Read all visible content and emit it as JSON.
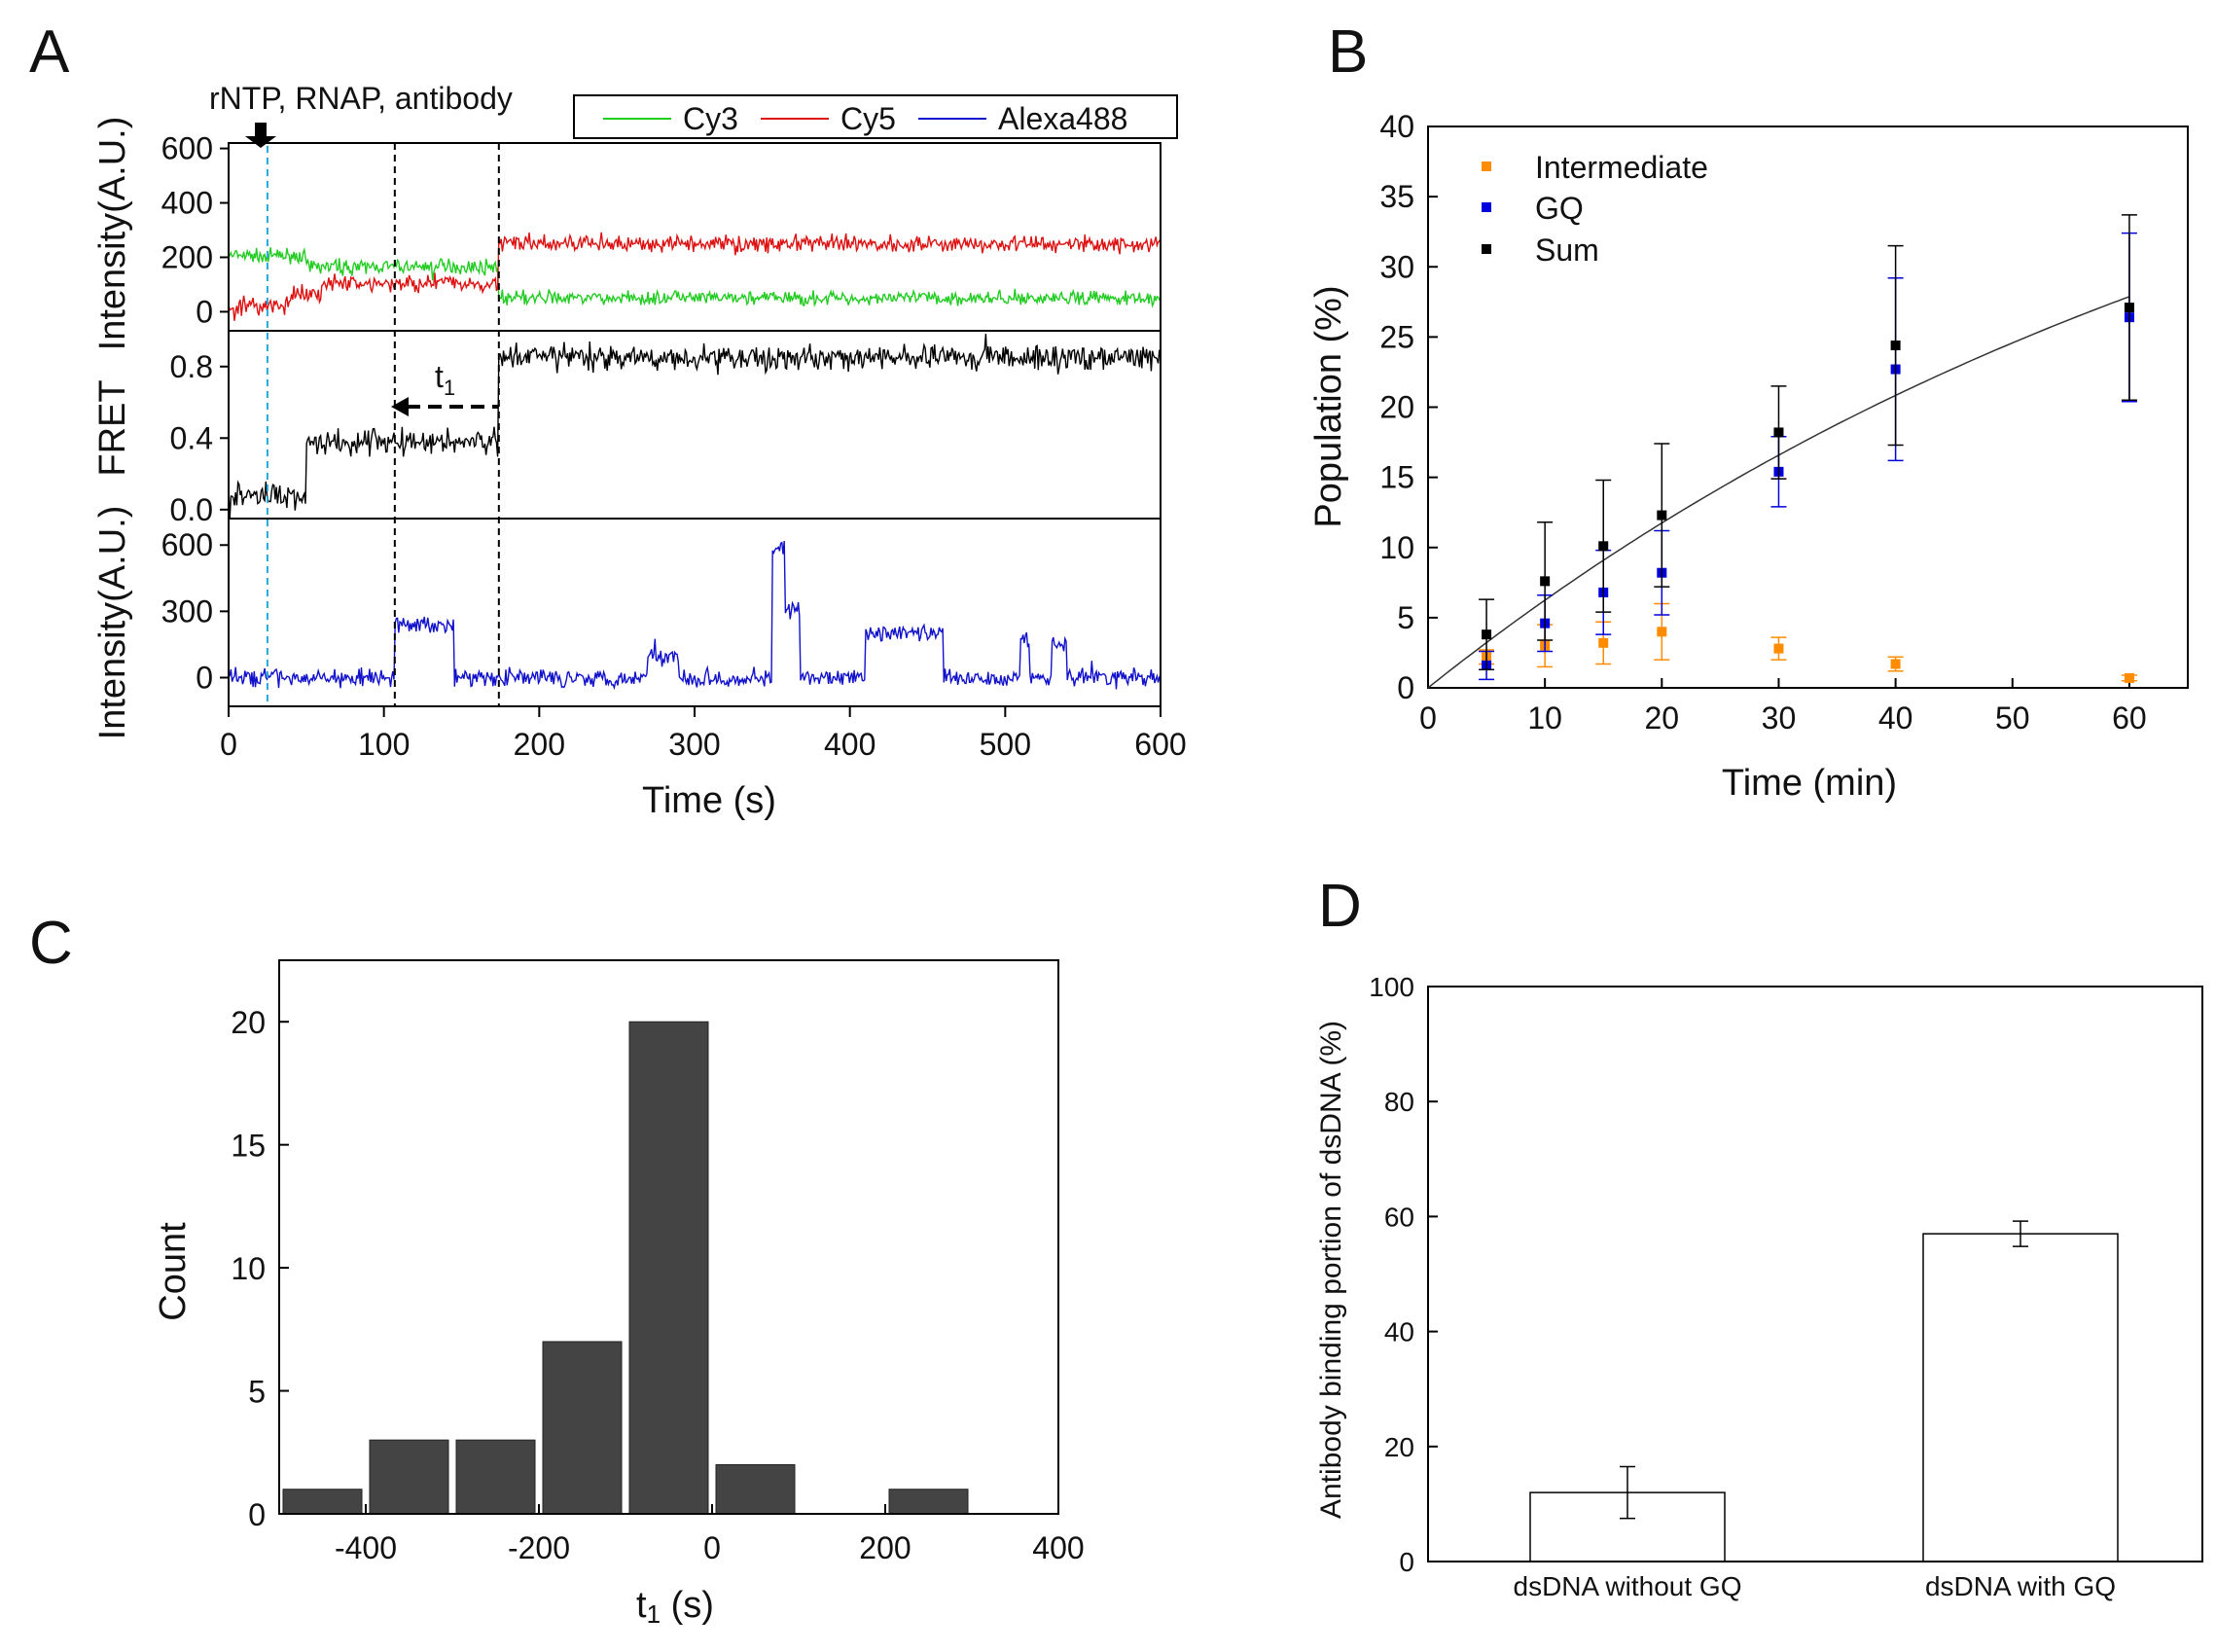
{
  "panels": {
    "A": {
      "letter": "A"
    },
    "B": {
      "letter": "B"
    },
    "C": {
      "letter": "C"
    },
    "D": {
      "letter": "D"
    }
  },
  "chart_data": [
    {
      "id": "A",
      "type": "line",
      "annotation": "rNTP, RNAP, antibody",
      "interval_label": "t",
      "interval_label_sub": "1",
      "event_lines_x": [
        25,
        107,
        174
      ],
      "legend": [
        "Cy3",
        "Cy5",
        "Alexa488"
      ],
      "legend_placement": "top",
      "xlabel": "Time (s)",
      "xlim": [
        0,
        600
      ],
      "xticks": [
        "0",
        "100",
        "200",
        "300",
        "400",
        "500",
        "600"
      ],
      "colors": {
        "Cy3": "#22cc22",
        "Cy5": "#dd1111",
        "Alexa488": "#1111cc",
        "FRET": "#000000"
      },
      "subplots": [
        {
          "ylabel": "Intensity(A.U.)",
          "ylim": [
            -70,
            620
          ],
          "yticks": [
            "0",
            "200",
            "400",
            "600"
          ],
          "series": [
            {
              "name": "Cy3",
              "levels": [
                [
                  0,
                  50,
                  205
                ],
                [
                  50,
                  174,
                  165
                ],
                [
                  174,
                  600,
                  50
                ]
              ],
              "noise": 18
            },
            {
              "name": "Cy5",
              "levels": [
                [
                  0,
                  40,
                  20
                ],
                [
                  40,
                  60,
                  60
                ],
                [
                  60,
                  174,
                  105
                ],
                [
                  174,
                  600,
                  250
                ]
              ],
              "noise": 22
            }
          ]
        },
        {
          "ylabel": "FRET",
          "ylim": [
            -0.05,
            1.0
          ],
          "yticks": [
            "0.0",
            "0.4",
            "0.8"
          ],
          "series": [
            {
              "name": "FRET",
              "levels": [
                [
                  0,
                  50,
                  0.08
                ],
                [
                  50,
                  174,
                  0.38
                ],
                [
                  174,
                  600,
                  0.85
                ]
              ],
              "noise": 0.05
            }
          ]
        },
        {
          "ylabel": "Intensity(A.U.)",
          "ylim": [
            -130,
            720
          ],
          "yticks": [
            "0",
            "300",
            "600"
          ],
          "series": [
            {
              "name": "Alexa488",
              "levels": [
                [
                  0,
                  107,
                  0
                ],
                [
                  107,
                  145,
                  240
                ],
                [
                  145,
                  270,
                  0
                ],
                [
                  270,
                  290,
                  100
                ],
                [
                  290,
                  350,
                  0
                ],
                [
                  350,
                  358,
                  580
                ],
                [
                  358,
                  368,
                  300
                ],
                [
                  368,
                  410,
                  0
                ],
                [
                  410,
                  460,
                  200
                ],
                [
                  460,
                  510,
                  0
                ],
                [
                  510,
                  516,
                  180
                ],
                [
                  516,
                  530,
                  0
                ],
                [
                  530,
                  540,
                  160
                ],
                [
                  540,
                  600,
                  0
                ]
              ],
              "noise": 28
            }
          ]
        }
      ]
    },
    {
      "id": "B",
      "type": "scatter",
      "xlabel": "Time (min)",
      "ylabel": "Population (%)",
      "xlim": [
        0,
        65
      ],
      "ylim": [
        0,
        40
      ],
      "xticks": [
        0,
        10,
        20,
        30,
        40,
        50,
        60
      ],
      "yticks": [
        0,
        5,
        10,
        15,
        20,
        25,
        30,
        35,
        40
      ],
      "legend_placement": "top-left",
      "x": [
        5,
        10,
        15,
        20,
        30,
        40,
        60
      ],
      "series": [
        {
          "name": "Intermediate",
          "color": "#ff8c00",
          "values": [
            2.2,
            3.0,
            3.2,
            4.0,
            2.8,
            1.7,
            0.7
          ],
          "errors": [
            0.5,
            1.5,
            1.5,
            2.0,
            0.8,
            0.5,
            0.2
          ]
        },
        {
          "name": "GQ",
          "color": "#0000dd",
          "values": [
            1.6,
            4.6,
            6.8,
            8.2,
            15.4,
            22.7,
            26.4
          ],
          "errors": [
            1.0,
            2.0,
            3.0,
            3.0,
            2.5,
            6.5,
            6.0
          ]
        },
        {
          "name": "Sum",
          "color": "#000000",
          "values": [
            3.8,
            7.6,
            10.1,
            12.3,
            18.2,
            24.4,
            27.1
          ],
          "errors": [
            2.5,
            4.2,
            4.7,
            5.1,
            3.3,
            7.1,
            6.6
          ]
        }
      ],
      "fit": {
        "type": "exponential",
        "a": 52,
        "k": 0.0128
      }
    },
    {
      "id": "C",
      "type": "bar",
      "xlabel": "t",
      "xlabel_sub": "1",
      "xlabel_unit": " (s)",
      "ylabel": "Count",
      "xlim": [
        -500,
        400
      ],
      "ylim": [
        0,
        22.5
      ],
      "xticks": [
        -400,
        -200,
        0,
        200,
        400
      ],
      "xtick_labels": [
        "-400",
        "-200",
        "0",
        "200",
        "400"
      ],
      "yticks": [
        0,
        5,
        10,
        15,
        20
      ],
      "bar_color": "#444444",
      "bins": [
        {
          "center": -450,
          "value": 1
        },
        {
          "center": -350,
          "value": 3
        },
        {
          "center": -250,
          "value": 3
        },
        {
          "center": -150,
          "value": 7
        },
        {
          "center": -50,
          "value": 20
        },
        {
          "center": 50,
          "value": 2
        },
        {
          "center": 250,
          "value": 1
        }
      ],
      "bin_width": 100
    },
    {
      "id": "D",
      "type": "bar",
      "ylabel": "Antibody binding portion of dsDNA (%)",
      "ylim": [
        0,
        100
      ],
      "yticks": [
        0,
        20,
        40,
        60,
        80,
        100
      ],
      "categories": [
        "dsDNA without GQ",
        "dsDNA with GQ"
      ],
      "values": [
        12,
        57
      ],
      "errors": [
        4.5,
        2.2
      ]
    }
  ]
}
